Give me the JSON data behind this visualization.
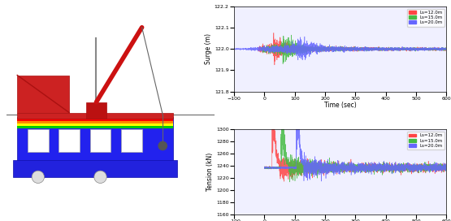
{
  "surge_ylim": [
    121.8,
    122.2
  ],
  "surge_yticks": [
    121.8,
    121.9,
    122.0,
    122.1,
    122.2
  ],
  "tension_ylim": [
    1160,
    1300
  ],
  "tension_yticks": [
    1160,
    1180,
    1200,
    1220,
    1240,
    1260,
    1280,
    1300
  ],
  "xlim": [
    -100,
    600
  ],
  "xticks": [
    -100,
    0,
    100,
    200,
    300,
    400,
    500,
    600
  ],
  "xlabel": "Time (sec)",
  "surge_ylabel": "Surge (m)",
  "tension_ylabel": "Tension (kN)",
  "legend_labels": [
    "Ls=12.0m",
    "Ls=15.0m",
    "Ls=20.0m"
  ],
  "colors": [
    "#ff4444",
    "#44bb44",
    "#6666ff"
  ],
  "surge_baseline": 122.0,
  "tension_baseline": 1237.0,
  "bg_color": "#f0f0ff"
}
